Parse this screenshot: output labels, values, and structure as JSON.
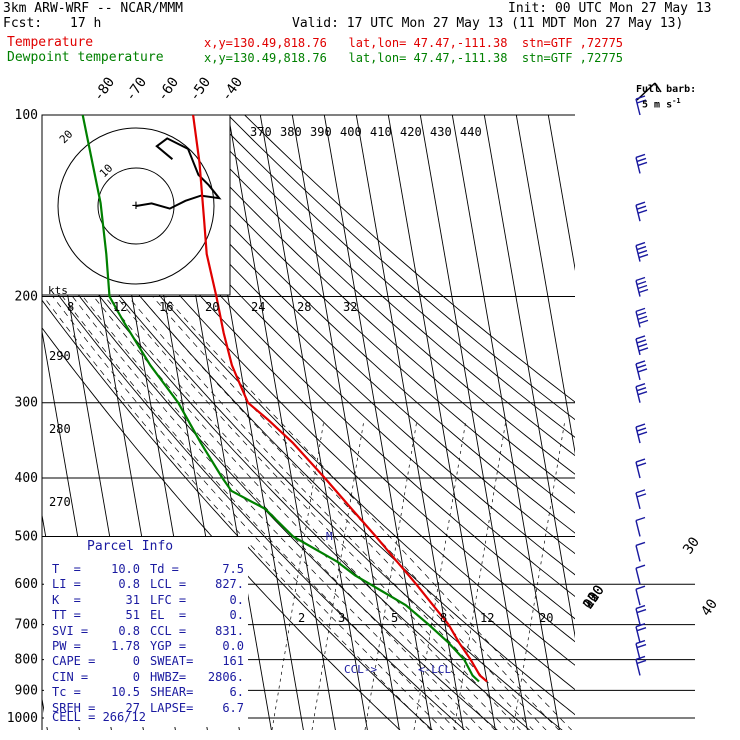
{
  "header": {
    "model": "3km ARW-WRF -- NCAR/MMM",
    "init": "Init: 00 UTC Mon 27 May 13",
    "fcst_label": "Fcst:",
    "fcst_value": "17 h",
    "valid": "Valid: 17 UTC Mon 27 May 13 (11 MDT Mon 27 May 13)",
    "temp_label": "Temperature",
    "temp_loc": "x,y=130.49,818.76   lat,lon= 47.47,-111.38  stn=GTF ,72775",
    "dew_label": "Dewpoint temperature",
    "dew_loc": "x,y=130.49,818.76   lat,lon= 47.47,-111.38  stn=GTF ,72775"
  },
  "full_barb": {
    "line1": "Full barb:",
    "line2": "5 m s",
    "sup": "-1"
  },
  "parcel": {
    "title": "Parcel Info",
    "rows": [
      [
        "T  =",
        "10.0",
        "Td =",
        "7.5"
      ],
      [
        "LI =",
        "0.8",
        "LCL =",
        "827."
      ],
      [
        "K  =",
        "31",
        "LFC =",
        "0."
      ],
      [
        "TT =",
        "51",
        "EL  =",
        "0."
      ],
      [
        "SVI =",
        "0.8",
        "CCL =",
        "831."
      ],
      [
        "PW =",
        "1.78",
        "YGP =",
        "0.0"
      ],
      [
        "CAPE =",
        "0",
        "SWEAT=",
        "161"
      ],
      [
        "CIN =",
        "0",
        "HWBZ=",
        "2806."
      ],
      [
        "Tc =",
        "10.5",
        "SHEAR=",
        "6."
      ],
      [
        "SREH =",
        "27",
        "LAPSE=",
        "6.7"
      ]
    ],
    "cell": "CELL = 266/12"
  },
  "hodograph": {
    "units": "kts",
    "ring_labels": [
      "10",
      "20"
    ]
  },
  "chart_data": {
    "type": "line",
    "title": "",
    "y_axis": {
      "label": "",
      "scale": "log",
      "ticks": [
        100,
        200,
        300,
        400,
        500,
        600,
        700,
        800,
        900,
        1000
      ]
    },
    "isotherm_labels": [
      -80,
      -70,
      -60,
      -50,
      -40,
      -30,
      -20,
      -10,
      0,
      10,
      20,
      30,
      40
    ],
    "theta_labels": [
      370,
      380,
      390,
      400,
      410,
      420,
      430,
      440
    ],
    "theta_left_labels": [
      290,
      280,
      270
    ],
    "mixing_ratio_labels": [
      8,
      12,
      16,
      20,
      24,
      28,
      32
    ],
    "mixing_ratio_low_labels": [
      2,
      3,
      5,
      8,
      12,
      20
    ],
    "annotations": [
      "CCL",
      "LCL",
      "M"
    ],
    "series": [
      {
        "name": "Temperature",
        "color": "#e00000",
        "points": [
          [
            100,
            -51.0
          ],
          [
            120,
            -51.6
          ],
          [
            150,
            -53.3
          ],
          [
            170,
            -54.3
          ],
          [
            200,
            -53.6
          ],
          [
            230,
            -53.3
          ],
          [
            260,
            -52.5
          ],
          [
            280,
            -51.0
          ],
          [
            300,
            -49.5
          ],
          [
            320,
            -44.2
          ],
          [
            350,
            -37.6
          ],
          [
            400,
            -29.6
          ],
          [
            450,
            -22.9
          ],
          [
            500,
            -16.8
          ],
          [
            550,
            -11.6
          ],
          [
            600,
            -6.8
          ],
          [
            650,
            -2.7
          ],
          [
            700,
            1.1
          ],
          [
            750,
            3.4
          ],
          [
            800,
            6.1
          ],
          [
            850,
            8.1
          ],
          [
            870,
            10.0
          ]
        ]
      },
      {
        "name": "Dewpoint temperature",
        "color": "#008000",
        "points": [
          [
            100,
            -85.5
          ],
          [
            140,
            -84.7
          ],
          [
            170,
            -85.7
          ],
          [
            200,
            -87.0
          ],
          [
            220,
            -84.0
          ],
          [
            260,
            -78.0
          ],
          [
            300,
            -71.3
          ],
          [
            350,
            -66.4
          ],
          [
            400,
            -61.6
          ],
          [
            420,
            -59.5
          ],
          [
            450,
            -49.9
          ],
          [
            500,
            -42.7
          ],
          [
            550,
            -30.4
          ],
          [
            580,
            -25.5
          ],
          [
            600,
            -21.2
          ],
          [
            650,
            -11.2
          ],
          [
            700,
            -5.1
          ],
          [
            750,
            0.1
          ],
          [
            800,
            4.1
          ],
          [
            850,
            5.8
          ],
          [
            870,
            7.5
          ]
        ]
      }
    ],
    "hodograph_trace": [
      [
        0,
        0
      ],
      [
        6,
        1
      ],
      [
        13,
        -1
      ],
      [
        19,
        2
      ],
      [
        25,
        4
      ],
      [
        32,
        3
      ],
      [
        28,
        8
      ],
      [
        24,
        12
      ],
      [
        20,
        22
      ],
      [
        12,
        26
      ],
      [
        8,
        23
      ],
      [
        14,
        18
      ]
    ],
    "wind_barbs": [
      {
        "p": 100,
        "speed": 10
      },
      {
        "p": 125,
        "speed": 15
      },
      {
        "p": 150,
        "speed": 15
      },
      {
        "p": 175,
        "speed": 20
      },
      {
        "p": 200,
        "speed": 20
      },
      {
        "p": 225,
        "speed": 20
      },
      {
        "p": 250,
        "speed": 20
      },
      {
        "p": 275,
        "speed": 15
      },
      {
        "p": 300,
        "speed": 15
      },
      {
        "p": 350,
        "speed": 15
      },
      {
        "p": 400,
        "speed": 10
      },
      {
        "p": 450,
        "speed": 10
      },
      {
        "p": 500,
        "speed": 5
      },
      {
        "p": 550,
        "speed": 5
      },
      {
        "p": 600,
        "speed": 5
      },
      {
        "p": 650,
        "speed": 5
      },
      {
        "p": 700,
        "speed": 10
      },
      {
        "p": 750,
        "speed": 10
      },
      {
        "p": 800,
        "speed": 10
      },
      {
        "p": 850,
        "speed": 10
      }
    ]
  }
}
